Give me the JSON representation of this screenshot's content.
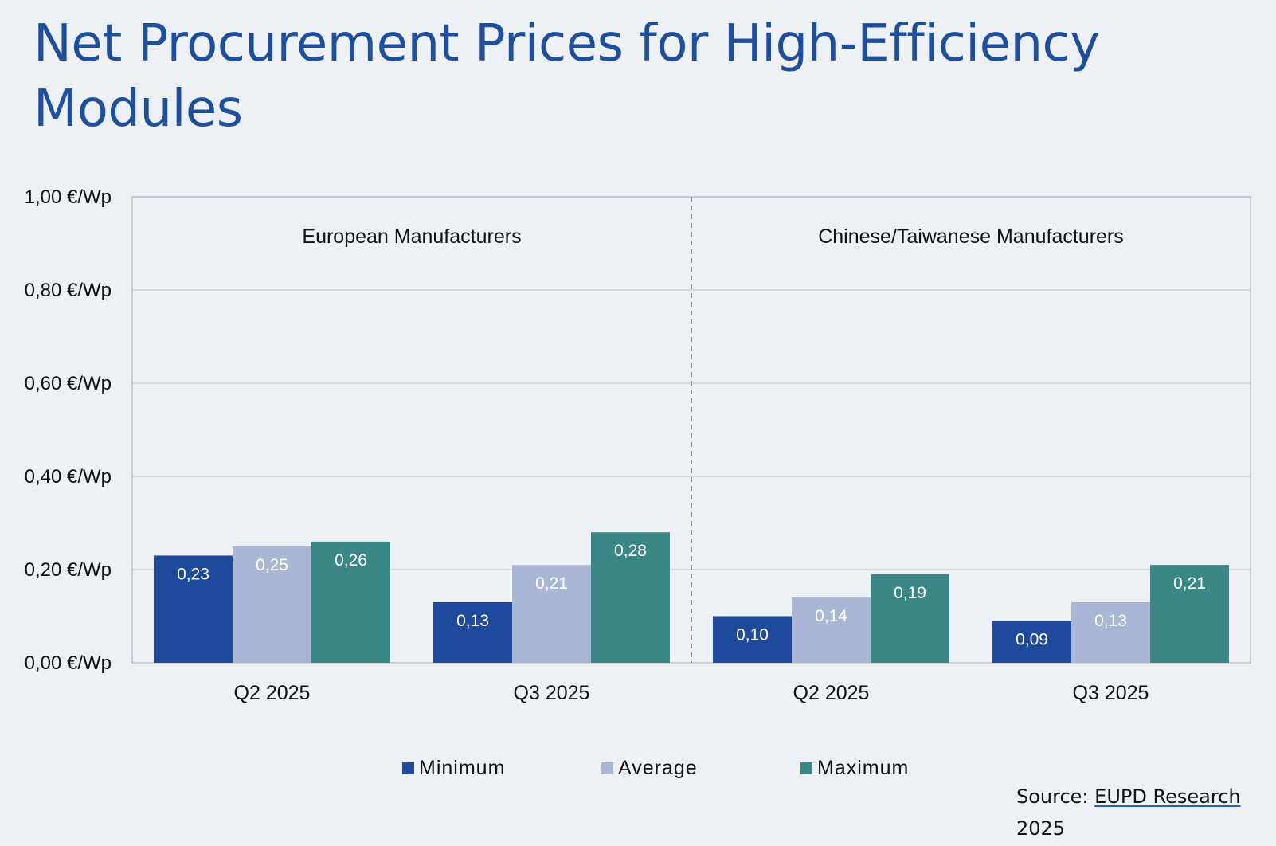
{
  "title": "Net Procurement Prices for High-Efficiency Modules",
  "source": {
    "prefix": "Source: ",
    "link_text": "EUPD Research",
    "year": "2025"
  },
  "chart_data": {
    "type": "bar",
    "title": "Net Procurement Prices for High-Efficiency Modules",
    "xlabel": "",
    "ylabel": "",
    "ylim": [
      0,
      1
    ],
    "yticks": [
      0,
      0.2,
      0.4,
      0.6,
      0.8,
      1.0
    ],
    "ytick_labels": [
      "0,00 €/Wp",
      "0,20 €/Wp",
      "0,40 €/Wp",
      "0,60 €/Wp",
      "0,80 €/Wp",
      "1,00 €/Wp"
    ],
    "grid": true,
    "legend_position": "bottom",
    "groups": [
      {
        "label": "European Manufacturers",
        "categories": [
          "Q2 2025",
          "Q3 2025"
        ]
      },
      {
        "label": "Chinese/Taiwanese Manufacturers",
        "categories": [
          "Q2 2025",
          "Q3 2025"
        ]
      }
    ],
    "categories": [
      "Q2 2025",
      "Q3 2025",
      "Q2 2025",
      "Q3 2025"
    ],
    "series": [
      {
        "name": "Minimum",
        "color": "#1f4a9c",
        "values": [
          0.23,
          0.13,
          0.1,
          0.09
        ],
        "labels": [
          "0,23",
          "0,13",
          "0,10",
          "0,09"
        ]
      },
      {
        "name": "Average",
        "color": "#a9b6d4",
        "values": [
          0.25,
          0.21,
          0.14,
          0.13
        ],
        "labels": [
          "0,25",
          "0,21",
          "0,14",
          "0,13"
        ]
      },
      {
        "name": "Maximum",
        "color": "#3a8786",
        "values": [
          0.26,
          0.28,
          0.19,
          0.21
        ],
        "labels": [
          "0,26",
          "0,28",
          "0,19",
          "0,21"
        ]
      }
    ]
  }
}
